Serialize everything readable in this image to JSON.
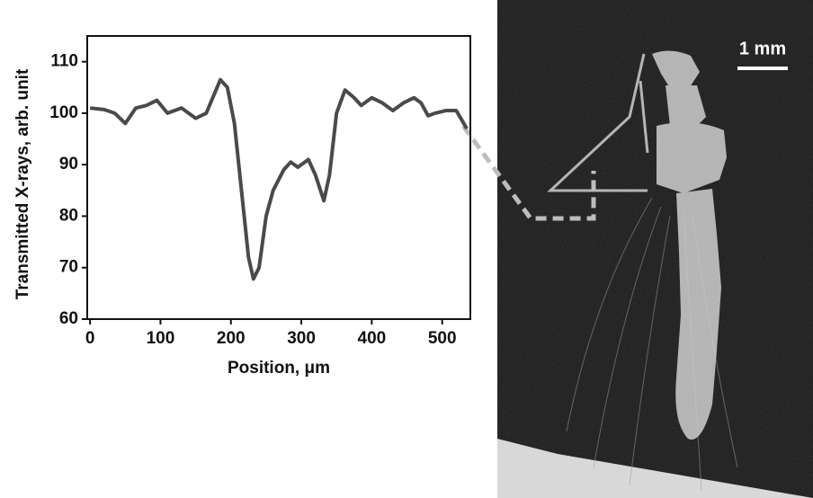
{
  "chart_data": {
    "type": "line",
    "x_label": "Position, μm",
    "y_label": "Transmitted X-rays, arb. unit",
    "x": [
      0,
      20,
      35,
      50,
      65,
      80,
      95,
      110,
      130,
      150,
      165,
      185,
      195,
      205,
      215,
      225,
      232,
      240,
      250,
      260,
      275,
      285,
      295,
      310,
      320,
      332,
      340,
      350,
      362,
      375,
      385,
      400,
      415,
      430,
      445,
      460,
      470,
      480,
      490,
      505,
      520,
      535
    ],
    "series": [
      {
        "color": "#4a4a4a",
        "values": [
          101,
          100.7,
          100,
          98,
          101,
          101.5,
          102.5,
          100,
          101,
          99,
          100,
          106.5,
          105,
          98,
          85,
          72,
          67.8,
          70,
          80,
          85,
          89,
          90.5,
          89.5,
          91,
          88,
          83,
          88,
          100,
          104.5,
          103,
          101.5,
          103,
          102,
          100.5,
          102,
          103,
          102,
          99.5,
          100,
          100.5,
          100.5,
          97
        ]
      }
    ],
    "xlim": [
      -4,
      540
    ],
    "ylim": [
      60,
      115
    ],
    "xticks": [
      0,
      100,
      200,
      300,
      400,
      500
    ],
    "yticks": [
      60,
      70,
      80,
      90,
      100,
      110
    ]
  },
  "image": {
    "scale_label": "1 mm"
  }
}
